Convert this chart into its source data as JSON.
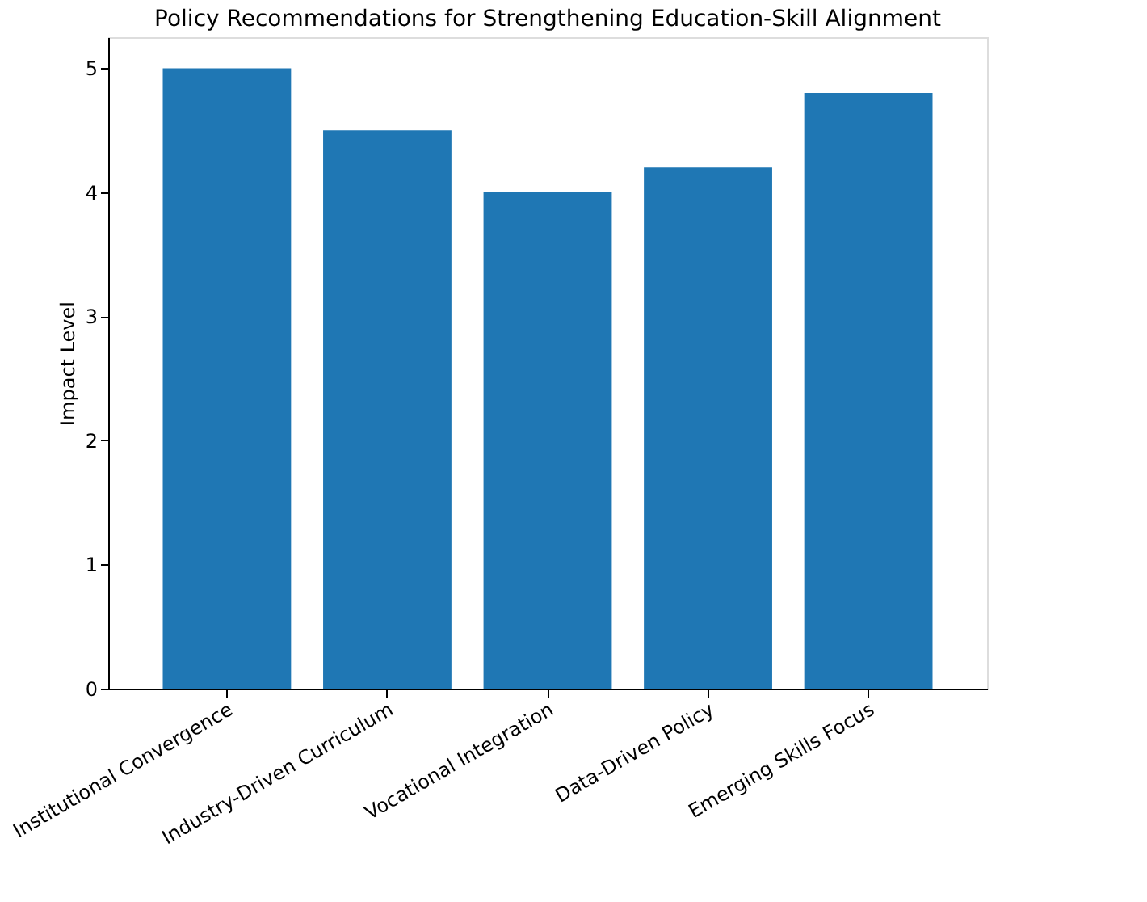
{
  "chart_data": {
    "type": "bar",
    "title": "Policy Recommendations for Strengthening Education-Skill Alignment",
    "ylabel": "Impact Level",
    "categories": [
      "Institutional Convergence",
      "Industry-Driven Curriculum",
      "Vocational Integration",
      "Data-Driven Policy",
      "Emerging Skills Focus"
    ],
    "values": [
      5.0,
      4.5,
      4.0,
      4.2,
      4.8
    ],
    "color": "#1f77b4",
    "ylim": [
      0,
      5.25
    ],
    "yticks": [
      0,
      1,
      2,
      3,
      4,
      5
    ],
    "grid": false
  }
}
